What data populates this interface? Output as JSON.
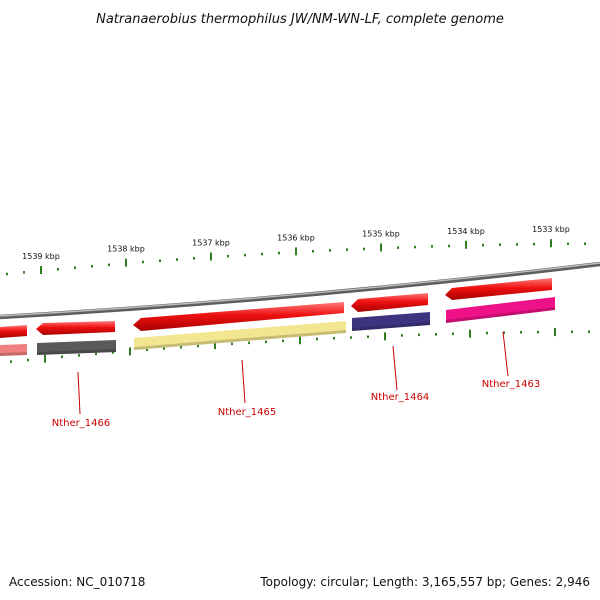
{
  "title": "Natranaerobius thermophilus JW/NM-WN-LF, complete genome",
  "footer": {
    "accession": "Accession: NC_010718",
    "summary": "Topology: circular; Length: 3,165,557 bp; Genes: 2,946"
  },
  "ruler": {
    "labels": [
      "1539 kbp",
      "1538 kbp",
      "1537 kbp",
      "1536 kbp",
      "1535 kbp",
      "1534 kbp",
      "1533 kbp"
    ],
    "tick_color": "#2e7d1e"
  },
  "backbone_color": "#8a8a8a",
  "cds_color": "#ee1111",
  "genes": [
    {
      "name": "Nther_1466",
      "color": "#5a5a5a"
    },
    {
      "name": "Nther_1465",
      "color": "#f2e690"
    },
    {
      "name": "Nther_1464",
      "color": "#3d3480"
    },
    {
      "name": "Nther_1463",
      "color": "#ee1188"
    }
  ],
  "edge_gene_color": "#f08080",
  "label_line_color": "#cc0000"
}
